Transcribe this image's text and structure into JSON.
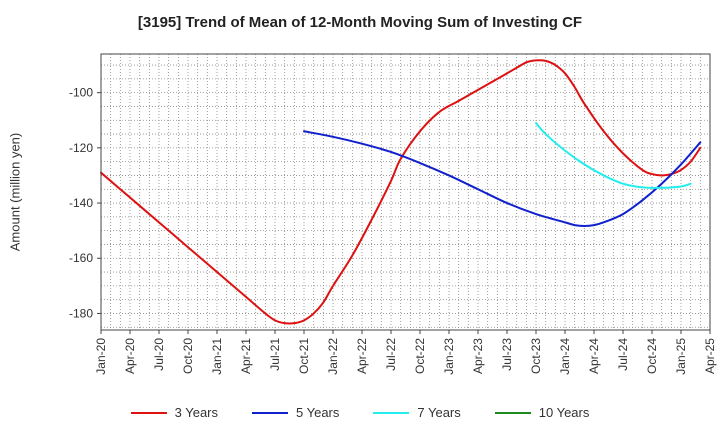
{
  "chart_data": {
    "type": "line",
    "title": "[3195]  Trend of Mean of 12-Month Moving Sum of Investing CF",
    "xlabel": "",
    "ylabel": "Amount (million yen)",
    "ylim": [
      -186,
      -86
    ],
    "yticks": [
      -100,
      -120,
      -140,
      -160,
      -180
    ],
    "x_tick_labels": [
      "Jan-20",
      "Apr-20",
      "Jul-20",
      "Oct-20",
      "Jan-21",
      "Apr-21",
      "Jul-21",
      "Oct-21",
      "Jan-22",
      "Apr-22",
      "Jul-22",
      "Oct-22",
      "Jan-23",
      "Apr-23",
      "Jul-23",
      "Oct-23",
      "Jan-24",
      "Apr-24",
      "Jul-24",
      "Oct-24",
      "Jan-25",
      "Apr-25"
    ],
    "x_unit": "months since Jan-20",
    "xlim": [
      0,
      63
    ],
    "series": [
      {
        "name": "3 Years",
        "color": "#dd1111",
        "points": [
          [
            0,
            -129
          ],
          [
            3,
            -138
          ],
          [
            6,
            -147
          ],
          [
            9,
            -156
          ],
          [
            12,
            -165
          ],
          [
            15,
            -174
          ],
          [
            17,
            -180
          ],
          [
            18,
            -182.5
          ],
          [
            19,
            -183.5
          ],
          [
            20,
            -183.5
          ],
          [
            21,
            -182.5
          ],
          [
            22,
            -180
          ],
          [
            23,
            -176
          ],
          [
            24,
            -170
          ],
          [
            26,
            -159
          ],
          [
            28,
            -146
          ],
          [
            30,
            -132
          ],
          [
            31,
            -124
          ],
          [
            33,
            -114
          ],
          [
            35,
            -107
          ],
          [
            37,
            -103
          ],
          [
            39,
            -99
          ],
          [
            41,
            -95
          ],
          [
            43,
            -91
          ],
          [
            44,
            -89
          ],
          [
            45,
            -88.3
          ],
          [
            46,
            -88.5
          ],
          [
            47,
            -90
          ],
          [
            48,
            -93
          ],
          [
            49,
            -98
          ],
          [
            50,
            -104
          ],
          [
            52,
            -114
          ],
          [
            54,
            -122
          ],
          [
            56,
            -128
          ],
          [
            57,
            -129.5
          ],
          [
            58,
            -130
          ],
          [
            59,
            -129.5
          ],
          [
            60,
            -128
          ],
          [
            61,
            -125
          ],
          [
            62,
            -120
          ]
        ]
      },
      {
        "name": "5 Years",
        "color": "#1020cc",
        "points": [
          [
            21,
            -114
          ],
          [
            24,
            -116
          ],
          [
            27,
            -118.5
          ],
          [
            30,
            -121.5
          ],
          [
            33,
            -125.5
          ],
          [
            36,
            -130
          ],
          [
            39,
            -135
          ],
          [
            42,
            -140
          ],
          [
            45,
            -144
          ],
          [
            48,
            -147
          ],
          [
            49,
            -148
          ],
          [
            50,
            -148.3
          ],
          [
            51,
            -148
          ],
          [
            52,
            -147
          ],
          [
            54,
            -144
          ],
          [
            56,
            -139
          ],
          [
            58,
            -133
          ],
          [
            60,
            -126
          ],
          [
            62,
            -118
          ]
        ]
      },
      {
        "name": "7 Years",
        "color": "#22eeee",
        "points": [
          [
            45,
            -111
          ],
          [
            46,
            -115
          ],
          [
            48,
            -121
          ],
          [
            50,
            -126
          ],
          [
            52,
            -130
          ],
          [
            54,
            -133
          ],
          [
            56,
            -134.3
          ],
          [
            58,
            -134.5
          ],
          [
            60,
            -134
          ],
          [
            61,
            -133
          ]
        ]
      },
      {
        "name": "10 Years",
        "color": "#1f8a1f",
        "points": []
      }
    ]
  }
}
